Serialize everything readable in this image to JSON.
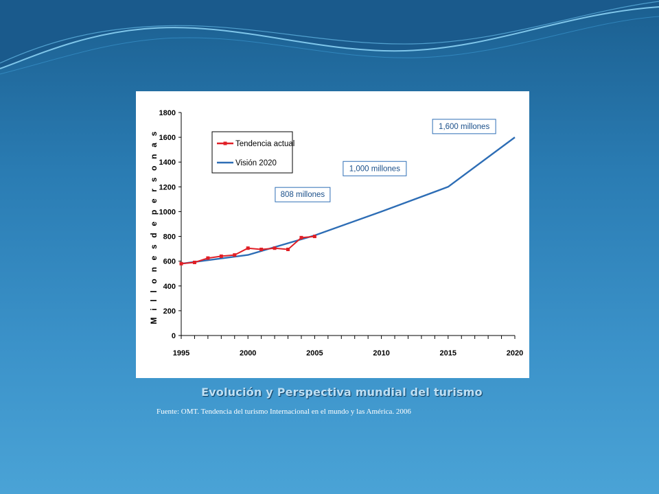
{
  "slide": {
    "title": "Evolución y Perspectiva mundial del turismo",
    "source": "Fuente: OMT. Tendencia del turismo Internacional en el mundo y las América. 2006"
  },
  "colors": {
    "series_actual": "#e01f26",
    "series_vision": "#2d6db5",
    "annotation": "#2d6db5"
  },
  "chart_data": {
    "type": "line",
    "title": "",
    "xlabel": "",
    "ylabel": "M i l l o n e s   d e   p e r s o n a s",
    "xlim": [
      1995,
      2020
    ],
    "ylim": [
      0,
      1800
    ],
    "x_ticks": [
      1995,
      2000,
      2005,
      2010,
      2015,
      2020
    ],
    "y_ticks": [
      0,
      200,
      400,
      600,
      800,
      1000,
      1200,
      1400,
      1600,
      1800
    ],
    "legend": {
      "placement": "top-left"
    },
    "series": [
      {
        "name": "Tendencia actual",
        "color": "#e01f26",
        "marker": "square",
        "x": [
          1995,
          1996,
          1997,
          1998,
          1999,
          2000,
          2001,
          2002,
          2003,
          2004,
          2005
        ],
        "y": [
          580,
          590,
          625,
          640,
          650,
          705,
          695,
          705,
          695,
          790,
          800
        ]
      },
      {
        "name": "Visión 2020",
        "color": "#2d6db5",
        "x": [
          1995,
          2000,
          2005,
          2010,
          2015,
          2020
        ],
        "y": [
          580,
          650,
          808,
          1000,
          1200,
          1600
        ]
      }
    ],
    "annotations": [
      {
        "text": "808 millones",
        "x": 2004.1,
        "y": 1140
      },
      {
        "text": "1,000 millones",
        "x": 2009.5,
        "y": 1350
      },
      {
        "text": "1,600 millones",
        "x": 2016.2,
        "y": 1690
      }
    ]
  }
}
